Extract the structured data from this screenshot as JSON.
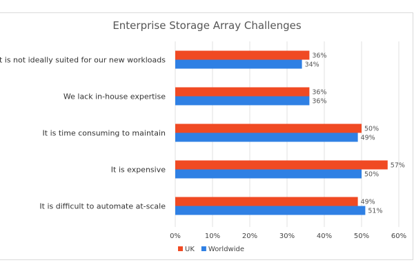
{
  "chart_data": {
    "type": "bar",
    "orientation": "horizontal",
    "title": "Enterprise Storage Array Challenges",
    "categories": [
      "It is not ideally suited for our new workloads",
      "We lack in-house expertise",
      "It is time consuming to maintain",
      "It is expensive",
      "It is difficult to automate at-scale"
    ],
    "series": [
      {
        "name": "UK",
        "color": "#f04a23",
        "values": [
          36,
          36,
          50,
          57,
          49
        ]
      },
      {
        "name": "Worldwide",
        "color": "#2f80e4",
        "values": [
          34,
          36,
          49,
          50,
          51
        ]
      }
    ],
    "xlim": [
      0,
      60
    ],
    "xticks": [
      0,
      10,
      20,
      30,
      40,
      50,
      60
    ],
    "tick_suffix": "%",
    "grid": true,
    "legend": "bottom-left",
    "xlabel": "",
    "ylabel": ""
  }
}
